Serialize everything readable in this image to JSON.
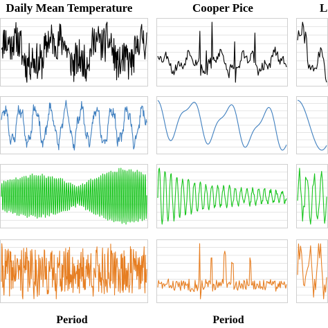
{
  "chart_data": [
    {
      "title": "Daily Mean Temperature",
      "xlabel": "Period",
      "panels": [
        {
          "type": "line",
          "color": "#000000",
          "noise": 0.62,
          "waves": [
            [
              3.2,
              0.45,
              0.3
            ],
            [
              9.5,
              0.18,
              1.1
            ],
            [
              37,
              0.12,
              2.0
            ]
          ],
          "decay": 0,
          "envelope": "none",
          "seed": 11,
          "n": 320
        },
        {
          "type": "line",
          "color": "#3f7fbf",
          "noise": 0.16,
          "waves": [
            [
              9.5,
              0.58,
              0.2
            ],
            [
              27,
              0.16,
              1.3
            ]
          ],
          "decay": 0,
          "envelope": "none",
          "seed": 23,
          "n": 300
        },
        {
          "type": "line",
          "color": "#17c41c",
          "noise": 0.05,
          "waves": [
            [
              72,
              0.92,
              0.0
            ]
          ],
          "decay": 0,
          "envelope": "sine3",
          "seed": 37,
          "n": 520
        },
        {
          "type": "line",
          "color": "#e67e22",
          "noise": 0.42,
          "waves": [
            [
              52,
              0.08,
              0.4
            ]
          ],
          "decay": 0,
          "envelope": "none",
          "seed": 41,
          "n": 340
        }
      ]
    },
    {
      "title": "Cooper Pice",
      "xlabel": "Period",
      "panels": [
        {
          "type": "line",
          "color": "#000000",
          "noise": 0.22,
          "waves": [
            [
              4.5,
              0.34,
              0.7
            ],
            [
              12,
              0.22,
              2.2
            ]
          ],
          "decay": 0,
          "envelope": "none",
          "spikes": [
            [
              0.33,
              0.85
            ],
            [
              0.38,
              0.7
            ],
            [
              0.42,
              0.95
            ],
            [
              0.55,
              0.9
            ],
            [
              0.6,
              0.8
            ],
            [
              0.75,
              0.78
            ],
            [
              0.82,
              0.6
            ]
          ],
          "seed": 53,
          "n": 160
        },
        {
          "type": "line",
          "color": "#3f7fbf",
          "noise": 0.0,
          "waves": [
            [
              3.4,
              0.62,
              2.4
            ],
            [
              7,
              0.2,
              0.6
            ]
          ],
          "decay": 0,
          "envelope": "none",
          "trend": -0.25,
          "seed": 61,
          "n": 200
        },
        {
          "type": "line",
          "color": "#17c41c",
          "noise": 0.08,
          "waves": [
            [
              22,
              0.95,
              0.0
            ]
          ],
          "decay": 3.2,
          "envelope": "none",
          "seed": 71,
          "n": 240
        },
        {
          "type": "line",
          "color": "#e67e22",
          "noise": 0.22,
          "waves": [
            [
              38,
              0.05,
              0.2
            ]
          ],
          "decay": 0,
          "envelope": "none",
          "spikes": [
            [
              0.33,
              0.9
            ],
            [
              0.42,
              0.65
            ],
            [
              0.52,
              0.75
            ],
            [
              0.58,
              0.55
            ],
            [
              0.72,
              0.5
            ]
          ],
          "seed": 83,
          "n": 170
        }
      ]
    },
    {
      "title": "L",
      "xlabel": "",
      "panels": [
        {
          "type": "line",
          "color": "#000000",
          "noise": 0.25,
          "waves": [
            [
              1.5,
              0.4,
              0.0
            ]
          ],
          "decay": 0,
          "envelope": "none",
          "trend": -0.5,
          "seed": 91,
          "n": 30
        },
        {
          "type": "line",
          "color": "#3f7fbf",
          "noise": 0.0,
          "waves": [
            [
              0.6,
              0.8,
              1.57
            ]
          ],
          "decay": 0,
          "envelope": "none",
          "seed": 97,
          "n": 30
        },
        {
          "type": "line",
          "color": "#17c41c",
          "noise": 0.25,
          "waves": [
            [
              4,
              0.5,
              0.0
            ]
          ],
          "decay": 0,
          "envelope": "none",
          "seed": 101,
          "n": 30
        },
        {
          "type": "line",
          "color": "#e67e22",
          "noise": 0.15,
          "waves": [
            [
              3,
              0.25,
              0.0
            ]
          ],
          "decay": 0,
          "envelope": "none",
          "seed": 107,
          "n": 30
        }
      ]
    }
  ]
}
